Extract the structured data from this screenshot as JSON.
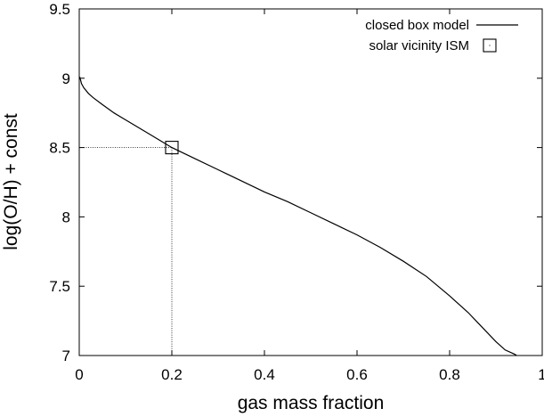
{
  "chart_data": {
    "type": "line",
    "xlabel": "gas mass fraction",
    "ylabel": "log(O/H) + const",
    "xlim": [
      0,
      1
    ],
    "ylim": [
      7,
      9.5
    ],
    "x_ticks": [
      "0",
      "0.2",
      "0.4",
      "0.6",
      "0.8",
      "1"
    ],
    "y_ticks": [
      "7",
      "7.5",
      "8",
      "8.5",
      "9",
      "9.5"
    ],
    "grid": false,
    "legend_position": "top-right",
    "series": [
      {
        "name": "closed box model",
        "style": "line",
        "color": "#000000",
        "x": [
          0.001,
          0.005,
          0.01,
          0.02,
          0.03,
          0.05,
          0.075,
          0.1,
          0.15,
          0.2,
          0.25,
          0.3,
          0.35,
          0.4,
          0.45,
          0.5,
          0.55,
          0.6,
          0.65,
          0.7,
          0.75,
          0.8,
          0.82,
          0.84,
          0.86,
          0.88,
          0.9,
          0.92,
          0.94,
          0.945
        ],
        "y": [
          9.01,
          8.96,
          8.93,
          8.89,
          8.86,
          8.81,
          8.75,
          8.7,
          8.6,
          8.5,
          8.42,
          8.34,
          8.26,
          8.18,
          8.11,
          8.03,
          7.95,
          7.87,
          7.78,
          7.68,
          7.57,
          7.43,
          7.37,
          7.31,
          7.24,
          7.17,
          7.1,
          7.04,
          7.01,
          7.0
        ]
      },
      {
        "name": "solar vicinity ISM",
        "style": "point",
        "marker": "square",
        "color": "#000000",
        "x": [
          0.2
        ],
        "y": [
          8.5
        ],
        "guides": true
      }
    ]
  }
}
